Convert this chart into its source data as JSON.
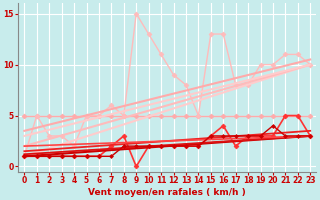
{
  "bg_color": "#c8ecec",
  "grid_color": "#aad8d8",
  "xlabel": "Vent moyen/en rafales ( km/h )",
  "xlabel_color": "#cc0000",
  "tick_color": "#cc0000",
  "xlim": [
    -0.5,
    23.5
  ],
  "ylim": [
    -0.5,
    16
  ],
  "yticks": [
    0,
    5,
    10,
    15
  ],
  "xticks": [
    0,
    1,
    2,
    3,
    4,
    5,
    6,
    7,
    8,
    9,
    10,
    11,
    12,
    13,
    14,
    15,
    16,
    17,
    18,
    19,
    20,
    21,
    22,
    23
  ],
  "lines": [
    {
      "x": [
        0,
        1,
        2,
        3,
        4,
        5,
        6,
        7,
        8,
        9,
        10,
        11,
        12,
        13,
        14,
        15,
        16,
        17,
        18,
        19,
        20,
        21,
        22,
        23
      ],
      "y": [
        5,
        5,
        5,
        5,
        5,
        5,
        5,
        5,
        5,
        5,
        5,
        5,
        5,
        5,
        5,
        5,
        5,
        5,
        5,
        5,
        5,
        5,
        5,
        5
      ],
      "color": "#ffaaaa",
      "lw": 1.0,
      "marker": "D",
      "ms": 2.5
    },
    {
      "x": [
        0,
        1,
        2,
        3,
        4,
        5,
        6,
        7,
        8,
        9,
        10,
        11,
        12,
        13,
        14,
        15,
        16,
        17,
        18,
        19,
        20,
        21,
        22,
        23
      ],
      "y": [
        1,
        5,
        3,
        3,
        2,
        5,
        5,
        6,
        5,
        15,
        13,
        11,
        9,
        8,
        5,
        13,
        13,
        8,
        8,
        10,
        10,
        11,
        11,
        10
      ],
      "color": "#ffbbbb",
      "lw": 1.0,
      "marker": "D",
      "ms": 2.5
    },
    {
      "x": [
        0,
        23
      ],
      "y": [
        1,
        10
      ],
      "color": "#ffcccc",
      "lw": 1.5,
      "marker": null,
      "ms": 0
    },
    {
      "x": [
        0,
        23
      ],
      "y": [
        2,
        10
      ],
      "color": "#ffbbbb",
      "lw": 1.5,
      "marker": null,
      "ms": 0
    },
    {
      "x": [
        0,
        23
      ],
      "y": [
        3,
        10
      ],
      "color": "#ffcccc",
      "lw": 1.5,
      "marker": null,
      "ms": 0
    },
    {
      "x": [
        0,
        23
      ],
      "y": [
        3.5,
        10.5
      ],
      "color": "#ffaaaa",
      "lw": 1.5,
      "marker": null,
      "ms": 0
    },
    {
      "x": [
        0,
        1,
        2,
        3,
        4,
        5,
        6,
        7,
        8,
        9,
        10,
        11,
        12,
        13,
        14,
        15,
        16,
        17,
        18,
        19,
        20,
        21,
        22,
        23
      ],
      "y": [
        1,
        1,
        1,
        1,
        1,
        1,
        1,
        2,
        3,
        0,
        2,
        2,
        2,
        2,
        2,
        3,
        4,
        2,
        3,
        3,
        3,
        5,
        5,
        3
      ],
      "color": "#ff3333",
      "lw": 1.2,
      "marker": "D",
      "ms": 2.5
    },
    {
      "x": [
        0,
        23
      ],
      "y": [
        1,
        3
      ],
      "color": "#cc0000",
      "lw": 1.5,
      "marker": null,
      "ms": 0
    },
    {
      "x": [
        0,
        23
      ],
      "y": [
        1.2,
        3
      ],
      "color": "#dd1111",
      "lw": 1.3,
      "marker": null,
      "ms": 0
    },
    {
      "x": [
        0,
        23
      ],
      "y": [
        1.5,
        3.5
      ],
      "color": "#ee2222",
      "lw": 1.3,
      "marker": null,
      "ms": 0
    },
    {
      "x": [
        0,
        23
      ],
      "y": [
        2,
        3
      ],
      "color": "#ff4444",
      "lw": 1.2,
      "marker": null,
      "ms": 0
    },
    {
      "x": [
        0,
        1,
        2,
        3,
        4,
        5,
        6,
        7,
        8,
        9,
        10,
        11,
        12,
        13,
        14,
        15,
        16,
        17,
        18,
        19,
        20,
        21,
        22,
        23
      ],
      "y": [
        1,
        1,
        1,
        1,
        1,
        1,
        1,
        1,
        2,
        2,
        2,
        2,
        2,
        2,
        2,
        3,
        3,
        3,
        3,
        3,
        4,
        3,
        3,
        3
      ],
      "color": "#cc0000",
      "lw": 1.0,
      "marker": "D",
      "ms": 2.0
    }
  ]
}
